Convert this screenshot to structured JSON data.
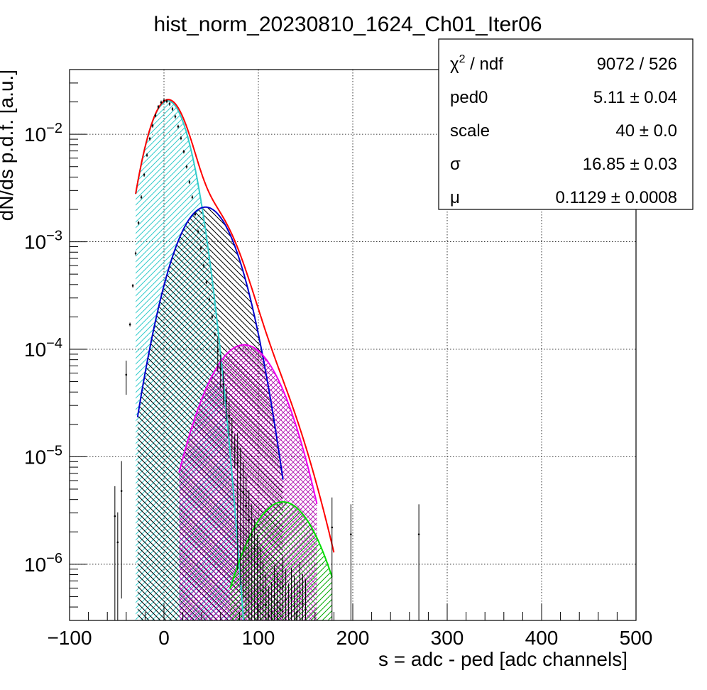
{
  "chart_data": {
    "type": "line",
    "title": "hist_norm_20230810_1624_Ch01_Iter06",
    "xlabel": "s = adc - ped [adc channels]",
    "ylabel": "dN/ds p.d.f. [a.u.]",
    "xlim": [
      -100,
      500
    ],
    "ylim": [
      3e-07,
      0.04
    ],
    "yscale": "log",
    "grid": true,
    "x_ticks": [
      "−100",
      "0",
      "100",
      "200",
      "300",
      "400",
      "500"
    ],
    "y_ticks": [
      {
        "base": "10",
        "exp": "−2",
        "value": 0.01
      },
      {
        "base": "10",
        "exp": "−3",
        "value": 0.001
      },
      {
        "base": "10",
        "exp": "−4",
        "value": 0.0001
      },
      {
        "base": "10",
        "exp": "−5",
        "value": 1e-05
      },
      {
        "base": "10",
        "exp": "−6",
        "value": 1e-06
      }
    ],
    "stats": {
      "rows": [
        {
          "label": "χ",
          "sup": "2",
          "label_tail": " / ndf",
          "value": "9072 / 526"
        },
        {
          "label": "ped0",
          "sup": "",
          "label_tail": "",
          "value": "5.11 ± 0.04"
        },
        {
          "label": "scale",
          "sup": "",
          "label_tail": "",
          "value": "40 ± 0.0"
        },
        {
          "label": "σ",
          "sup": "",
          "label_tail": "",
          "value": "16.85 ± 0.03"
        },
        {
          "label": "μ",
          "sup": "",
          "label_tail": "",
          "value": "0.1129 ± 0.0008"
        }
      ]
    },
    "components": [
      {
        "color": "#33cccc",
        "peak": 0.0205,
        "mean": 4,
        "sigma": 17,
        "xmin": -30,
        "xmax": 120,
        "hatch": "diag"
      },
      {
        "color": "#0000cc",
        "peak": 0.0021,
        "mean": 44,
        "sigma": 24,
        "xmin": -28,
        "xmax": 126,
        "hatch": "anti"
      },
      {
        "color": "#ee00ee",
        "peak": 0.00011,
        "mean": 85,
        "sigma": 29.5,
        "xmin": 16,
        "xmax": 162,
        "hatch": "cross"
      },
      {
        "color": "#00dd00",
        "peak": 3.8e-06,
        "mean": 126,
        "sigma": 29,
        "xmin": 70,
        "xmax": 178,
        "hatch": "diag"
      }
    ],
    "total_fit": {
      "color": "#ff0000",
      "xmin": -30,
      "xmax": 180
    },
    "data_points": {
      "x": [
        -45,
        -40,
        -36,
        -33,
        -30,
        -27,
        -24,
        -21,
        -18,
        -15,
        -12,
        -9,
        -6,
        -3,
        0,
        3,
        6,
        9,
        12,
        15,
        18,
        21,
        24,
        27,
        30,
        33,
        36,
        39,
        42,
        45,
        48,
        51,
        54,
        57,
        60,
        63,
        66,
        69,
        72,
        75,
        78,
        81,
        84,
        87,
        90,
        93,
        96,
        99,
        102,
        105,
        108,
        111,
        114,
        117,
        120,
        123,
        126,
        129,
        132,
        135,
        138,
        141,
        144,
        147,
        150
      ],
      "y": [
        4.8e-06,
        5.8e-05,
        0.00017,
        0.00039,
        0.00078,
        0.0015,
        0.0026,
        0.0042,
        0.0064,
        0.0091,
        0.012,
        0.015,
        0.018,
        0.0198,
        0.0206,
        0.0203,
        0.0192,
        0.0172,
        0.0146,
        0.0118,
        0.0092,
        0.0069,
        0.005,
        0.0036,
        0.0026,
        0.0018,
        0.00125,
        0.00087,
        0.0006,
        0.00042,
        0.00029,
        0.0002,
        0.000138,
        9.6e-05,
        6.6e-05,
        4.7e-05,
        3.3e-05,
        2.4e-05,
        1.7e-05,
        1.2e-05,
        8.8e-06,
        6.4e-06,
        4.7e-06,
        3.5e-06,
        2.6e-06,
        1.9e-06,
        1.4e-06,
        1e-06,
        7.6e-07,
        5.6e-07,
        4.2e-07,
        3.3e-07,
        3.6e-07,
        5.1e-07,
        4.4e-07,
        3.8e-07,
        6.2e-07,
        4.7e-07,
        3.5e-07,
        4.9e-07,
        4.1e-07,
        3.6e-07,
        5.5e-07,
        4.3e-07,
        3.8e-07
      ]
    },
    "outliers": {
      "x": [
        -52,
        -49,
        178,
        198,
        270
      ],
      "y": [
        2.8e-06,
        1.6e-06,
        2.2e-06,
        1.9e-06,
        1.9e-06
      ]
    }
  }
}
